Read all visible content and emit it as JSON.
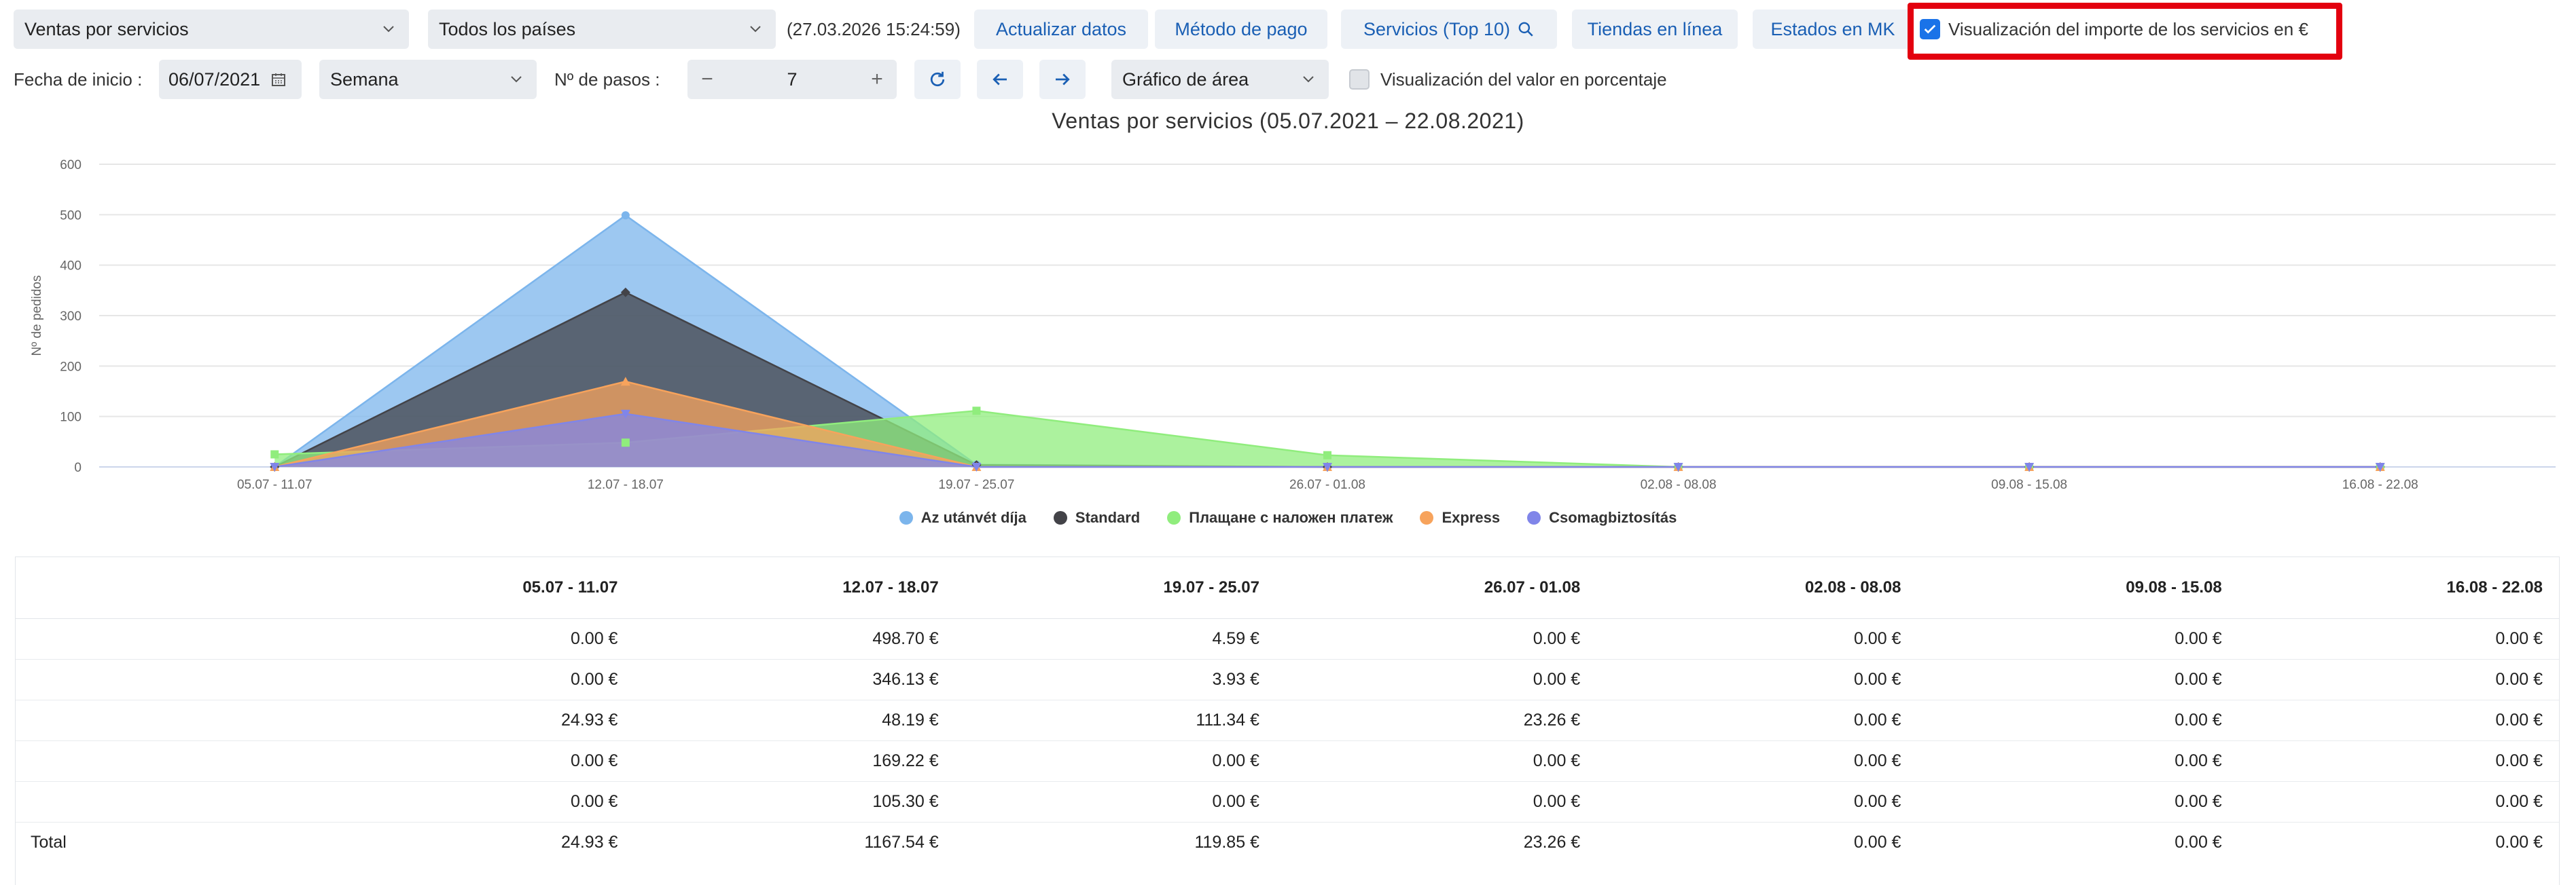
{
  "toolbar": {
    "report_select": "Ventas por servicios",
    "country_select": "Todos los países",
    "timestamp": "(27.03.2026 15:24:59)",
    "refresh_button": "Actualizar datos",
    "payment_button": "Método de pago",
    "services_button": "Servicios (Top 10)",
    "online_stores_button": "Tiendas en línea",
    "mk_states_button": "Estados en MK",
    "amount_checkbox_label": "Visualización del importe de los servicios en €",
    "amount_checkbox_checked": true
  },
  "controls": {
    "start_date_label": "Fecha de inicio :",
    "start_date_value": "06/07/2021",
    "period_select": "Semana",
    "steps_label": "Nº de pasos :",
    "steps_value": "7",
    "chart_type_select": "Gráfico de área",
    "percent_checkbox_label": "Visualización del valor en porcentaje",
    "percent_checkbox_checked": false
  },
  "colors": {
    "blue": "#7cb5ec",
    "dark": "#434348",
    "green": "#90ed7d",
    "orange": "#f7a35c",
    "purple": "#8085e9",
    "accent": "#1a5fb4",
    "highlight": "#e3000f"
  },
  "chart_data": {
    "type": "area",
    "title": "Ventas por servicios (05.07.2021 – 22.08.2021)",
    "ylabel": "Nº de pedidos",
    "xlabel": "",
    "ylim": [
      0,
      600
    ],
    "yticks": [
      "0",
      "100",
      "200",
      "300",
      "400",
      "500",
      "600"
    ],
    "categories": [
      "05.07 - 11.07",
      "12.07 - 18.07",
      "19.07 - 25.07",
      "26.07 - 01.08",
      "02.08 - 08.08",
      "09.08 - 15.08",
      "16.08 - 22.08"
    ],
    "grid": true,
    "legend_position": "bottom-center",
    "series": [
      {
        "name": "Az utánvét díja",
        "color": "#7cb5ec",
        "marker": "circle",
        "values": [
          0,
          498.7,
          4.59,
          0,
          0,
          0,
          0
        ]
      },
      {
        "name": "Standard",
        "color": "#434348",
        "marker": "diamond",
        "values": [
          0,
          346.13,
          3.93,
          0,
          0,
          0,
          0
        ]
      },
      {
        "name": "Плащане с наложен платеж",
        "color": "#90ed7d",
        "marker": "square",
        "values": [
          24.93,
          48.19,
          111.34,
          23.26,
          0,
          0,
          0
        ]
      },
      {
        "name": "Express",
        "color": "#f7a35c",
        "marker": "triangle",
        "values": [
          0,
          169.22,
          0,
          0,
          0,
          0,
          0
        ]
      },
      {
        "name": "Csomagbiztosítás",
        "color": "#8085e9",
        "marker": "triangle-down",
        "values": [
          0,
          105.3,
          0,
          0,
          0,
          0,
          0
        ]
      }
    ]
  },
  "table": {
    "headers": [
      "",
      "05.07 - 11.07",
      "12.07 - 18.07",
      "19.07 - 25.07",
      "26.07 - 01.08",
      "02.08 - 08.08",
      "09.08 - 15.08",
      "16.08 - 22.08"
    ],
    "rows": [
      [
        "",
        "0.00 €",
        "498.70 €",
        "4.59 €",
        "0.00 €",
        "0.00 €",
        "0.00 €",
        "0.00 €"
      ],
      [
        "",
        "0.00 €",
        "346.13 €",
        "3.93 €",
        "0.00 €",
        "0.00 €",
        "0.00 €",
        "0.00 €"
      ],
      [
        "",
        "24.93 €",
        "48.19 €",
        "111.34 €",
        "23.26 €",
        "0.00 €",
        "0.00 €",
        "0.00 €"
      ],
      [
        "",
        "0.00 €",
        "169.22 €",
        "0.00 €",
        "0.00 €",
        "0.00 €",
        "0.00 €",
        "0.00 €"
      ],
      [
        "",
        "0.00 €",
        "105.30 €",
        "0.00 €",
        "0.00 €",
        "0.00 €",
        "0.00 €",
        "0.00 €"
      ]
    ],
    "total_row": [
      "Total",
      "24.93 €",
      "1167.54 €",
      "119.85 €",
      "23.26 €",
      "0.00 €",
      "0.00 €",
      "0.00 €"
    ]
  }
}
